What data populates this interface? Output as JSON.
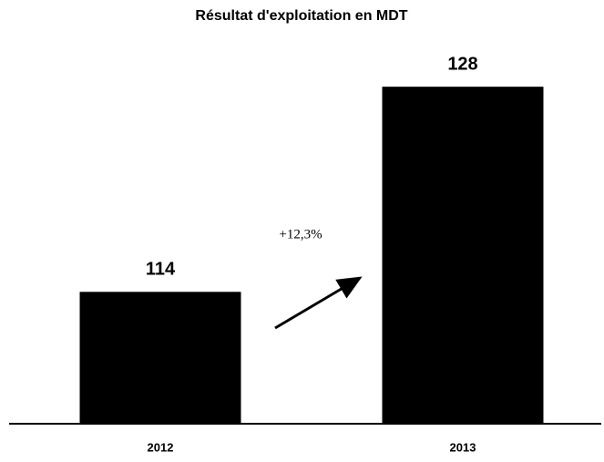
{
  "chart_data": {
    "type": "bar",
    "title": "Résultat d'exploitation en MDT",
    "categories": [
      "2012",
      "2013"
    ],
    "values": [
      114,
      128
    ],
    "color": "#000000",
    "ylim": [
      105,
      130
    ],
    "annotation": "+12,3%"
  }
}
